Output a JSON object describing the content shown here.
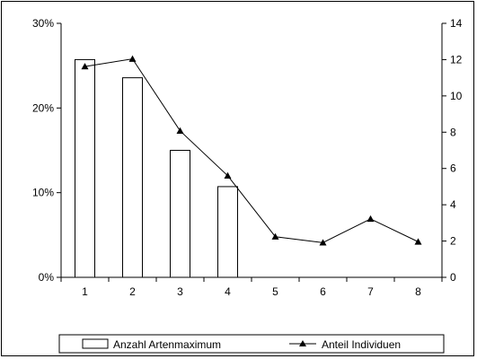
{
  "chart_data": {
    "type": "bar",
    "categories": [
      "1",
      "2",
      "3",
      "4",
      "5",
      "6",
      "7",
      "8"
    ],
    "series": [
      {
        "name": "Anzahl Artenmaximum",
        "kind": "bar",
        "axis": "right",
        "values": [
          12,
          11,
          7,
          5,
          null,
          null,
          null,
          null
        ]
      },
      {
        "name": "Anteil Individuen",
        "kind": "line",
        "marker": "triangle",
        "axis": "left",
        "values": [
          0.249,
          0.258,
          0.173,
          0.12,
          0.048,
          0.041,
          0.069,
          0.042
        ]
      }
    ],
    "y_left": {
      "ylim": [
        0,
        0.3
      ],
      "ticks": [
        0,
        0.1,
        0.2,
        0.3
      ],
      "tick_labels": [
        "0%",
        "10%",
        "20%",
        "30%"
      ]
    },
    "y_right": {
      "ylim": [
        0,
        14
      ],
      "ticks": [
        0,
        2,
        4,
        6,
        8,
        10,
        12,
        14
      ],
      "tick_labels": [
        "0",
        "2",
        "4",
        "6",
        "8",
        "10",
        "12",
        "14"
      ]
    },
    "grid": false,
    "legend_position": "bottom",
    "colors": {
      "bar_fill": "#ffffff",
      "stroke": "#000000",
      "line": "#000000"
    }
  }
}
